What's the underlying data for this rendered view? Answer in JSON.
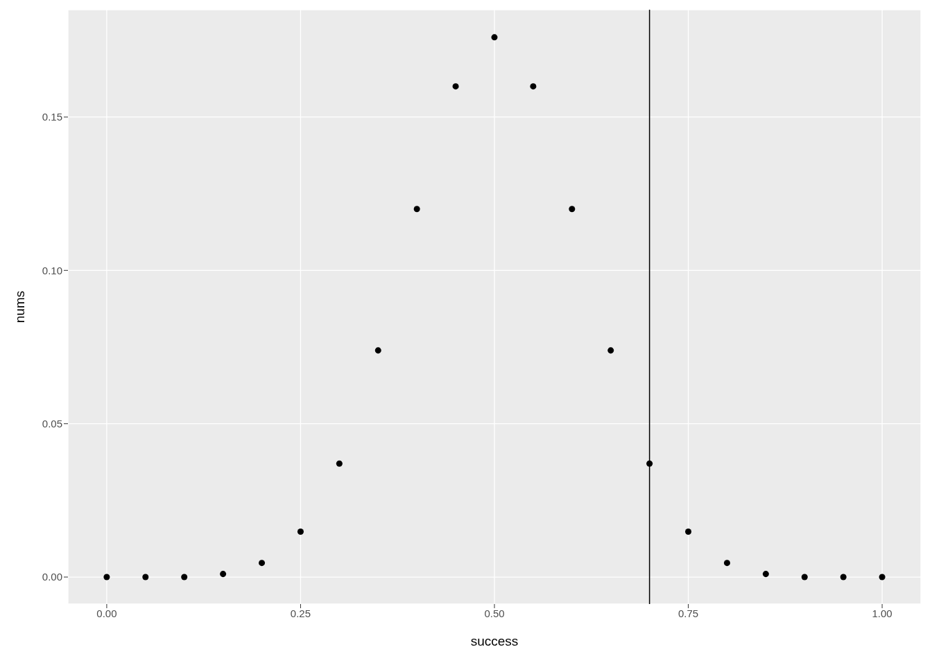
{
  "chart_data": {
    "type": "scatter",
    "xlabel": "success",
    "ylabel": "nums",
    "x": [
      0,
      0.05,
      0.1,
      0.15,
      0.2,
      0.25,
      0.3,
      0.35,
      0.4,
      0.45,
      0.5,
      0.55,
      0.6,
      0.65,
      0.7,
      0.75,
      0.8,
      0.85,
      0.9,
      0.95,
      1
    ],
    "series": [
      {
        "color": "#000000",
        "values": [
          0,
          0,
          0,
          0.001,
          0.0046,
          0.0148,
          0.037,
          0.0739,
          0.12,
          0.16,
          0.176,
          0.16,
          0.12,
          0.0739,
          0.037,
          0.0148,
          0.0046,
          0.001,
          0,
          0,
          0
        ]
      }
    ],
    "xlim": [
      -0.05,
      1.05
    ],
    "ylim": [
      -0.0088,
      0.185
    ],
    "xticks": [
      {
        "value": 0,
        "label": "0.00"
      },
      {
        "value": 0.25,
        "label": "0.25"
      },
      {
        "value": 0.5,
        "label": "0.50"
      },
      {
        "value": 0.75,
        "label": "0.75"
      },
      {
        "value": 1,
        "label": "1.00"
      }
    ],
    "yticks": [
      {
        "value": 0,
        "label": "0.00"
      },
      {
        "value": 0.05,
        "label": "0.05"
      },
      {
        "value": 0.1,
        "label": "0.10"
      },
      {
        "value": 0.15,
        "label": "0.15"
      }
    ],
    "ref_lines": [
      {
        "axis": "x",
        "value": 0.7,
        "color": "#000000"
      }
    ],
    "grid": true,
    "marker": "circle",
    "legend": false
  }
}
